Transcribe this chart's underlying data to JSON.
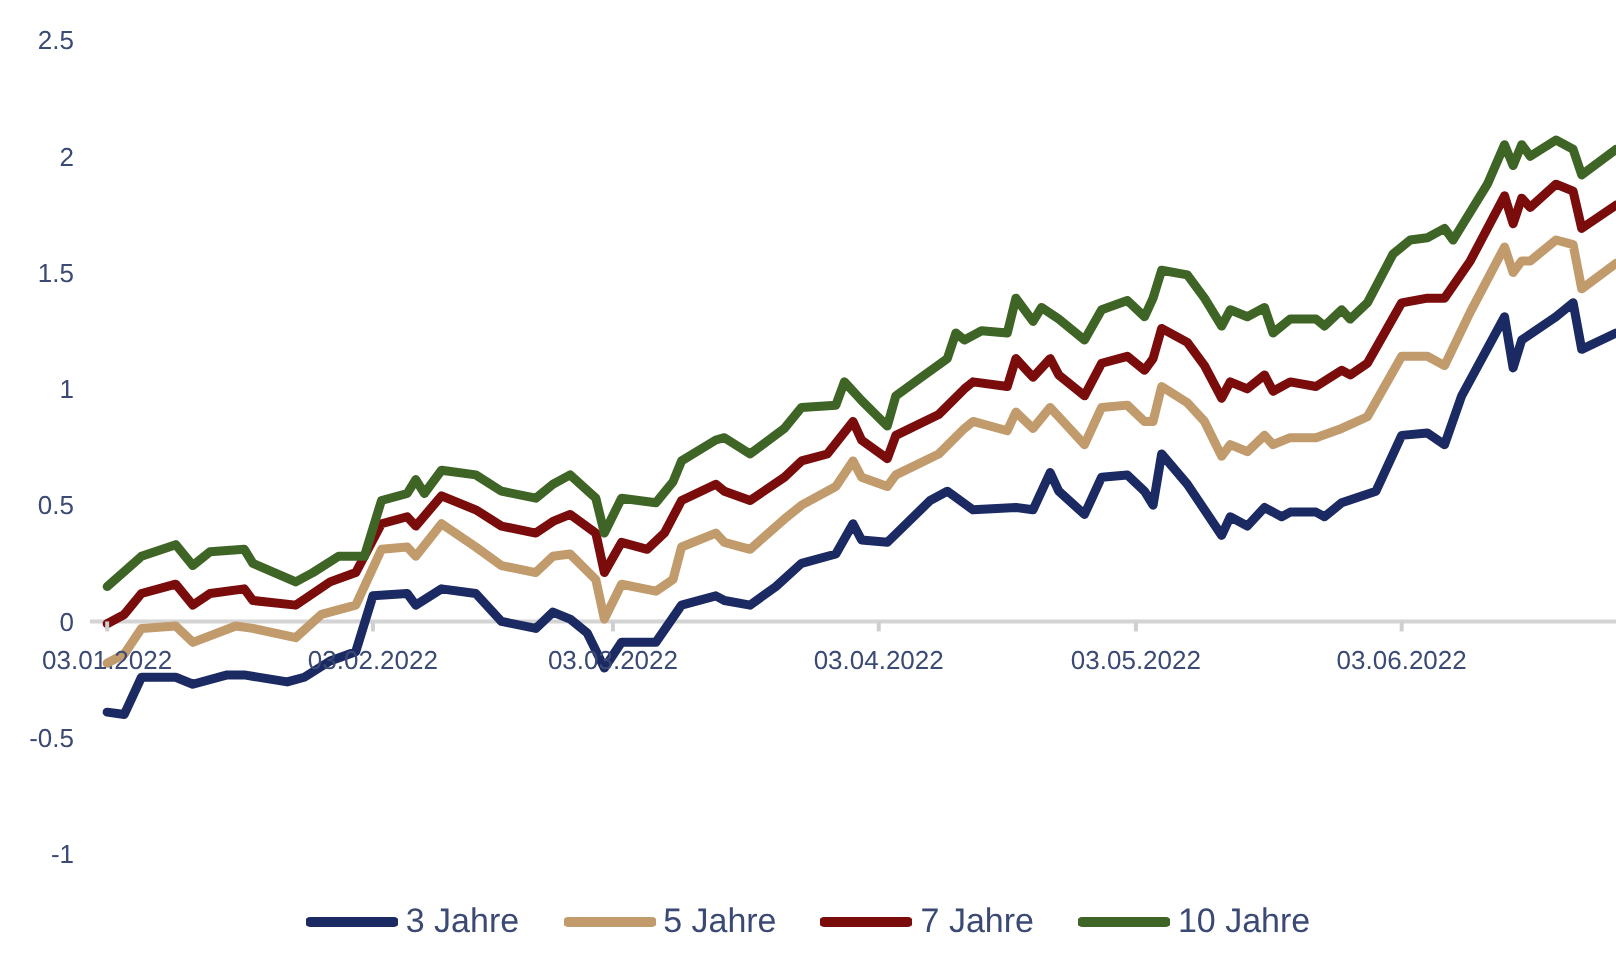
{
  "chart_data": {
    "type": "line",
    "legend": "bottom",
    "line_style": "solid",
    "xlim": [
      "2022-01-01",
      "2022-06-28"
    ],
    "ylim": [
      -1,
      2.5
    ],
    "xticks": [
      {
        "value": "2022-01-03",
        "label": "03.01.2022"
      },
      {
        "value": "2022-02-03",
        "label": "03.02.2022"
      },
      {
        "value": "2022-03-03",
        "label": "03.03.2022"
      },
      {
        "value": "2022-04-03",
        "label": "03.04.2022"
      },
      {
        "value": "2022-05-03",
        "label": "03.05.2022"
      },
      {
        "value": "2022-06-03",
        "label": "03.06.2022"
      }
    ],
    "yticks": [
      -1,
      -0.5,
      0,
      0.5,
      1,
      1.5,
      2,
      2.5
    ],
    "series": [
      {
        "name": "3 Jahre",
        "color": "#1b2a63",
        "x": [
          "2022-01-03",
          "2022-01-05",
          "2022-01-07",
          "2022-01-11",
          "2022-01-13",
          "2022-01-17",
          "2022-01-19",
          "2022-01-24",
          "2022-01-26",
          "2022-01-29",
          "2022-02-01",
          "2022-02-03",
          "2022-02-07",
          "2022-02-08",
          "2022-02-11",
          "2022-02-15",
          "2022-02-18",
          "2022-02-22",
          "2022-02-24",
          "2022-02-26",
          "2022-02-28",
          "2022-03-02",
          "2022-03-04",
          "2022-03-08",
          "2022-03-11",
          "2022-03-15",
          "2022-03-16",
          "2022-03-19",
          "2022-03-22",
          "2022-03-25",
          "2022-03-29",
          "2022-03-31",
          "2022-04-01",
          "2022-04-04",
          "2022-04-09",
          "2022-04-11",
          "2022-04-14",
          "2022-04-19",
          "2022-04-21",
          "2022-04-23",
          "2022-04-24",
          "2022-04-27",
          "2022-04-29",
          "2022-05-02",
          "2022-05-04",
          "2022-05-05",
          "2022-05-06",
          "2022-05-09",
          "2022-05-13",
          "2022-05-14",
          "2022-05-16",
          "2022-05-18",
          "2022-05-20",
          "2022-05-21",
          "2022-05-24",
          "2022-05-25",
          "2022-05-27",
          "2022-05-31",
          "2022-06-03",
          "2022-06-06",
          "2022-06-08",
          "2022-06-10",
          "2022-06-15",
          "2022-06-16",
          "2022-06-17",
          "2022-06-21",
          "2022-06-23",
          "2022-06-24",
          "2022-06-28"
        ],
        "values": [
          -0.39,
          -0.4,
          -0.24,
          -0.24,
          -0.27,
          -0.23,
          -0.23,
          -0.26,
          -0.24,
          -0.17,
          -0.13,
          0.11,
          0.12,
          0.07,
          0.14,
          0.12,
          0.0,
          -0.03,
          0.04,
          0.01,
          -0.05,
          -0.2,
          -0.09,
          -0.09,
          0.07,
          0.11,
          0.09,
          0.07,
          0.15,
          0.25,
          0.29,
          0.42,
          0.35,
          0.34,
          0.52,
          0.56,
          0.48,
          0.49,
          0.48,
          0.64,
          0.56,
          0.46,
          0.62,
          0.63,
          0.56,
          0.5,
          0.72,
          0.59,
          0.37,
          0.45,
          0.41,
          0.49,
          0.45,
          0.47,
          0.47,
          0.45,
          0.51,
          0.56,
          0.8,
          0.81,
          0.76,
          0.97,
          1.31,
          1.09,
          1.21,
          1.31,
          1.37,
          1.17,
          1.24
        ]
      },
      {
        "name": "5 Jahre",
        "color": "#c19b6c",
        "x": [
          "2022-01-03",
          "2022-01-05",
          "2022-01-07",
          "2022-01-11",
          "2022-01-13",
          "2022-01-18",
          "2022-01-20",
          "2022-01-25",
          "2022-01-28",
          "2022-02-01",
          "2022-02-04",
          "2022-02-07",
          "2022-02-08",
          "2022-02-11",
          "2022-02-15",
          "2022-02-18",
          "2022-02-22",
          "2022-02-24",
          "2022-02-26",
          "2022-03-01",
          "2022-03-02",
          "2022-03-04",
          "2022-03-08",
          "2022-03-10",
          "2022-03-11",
          "2022-03-15",
          "2022-03-16",
          "2022-03-19",
          "2022-03-23",
          "2022-03-25",
          "2022-03-29",
          "2022-03-31",
          "2022-04-01",
          "2022-04-04",
          "2022-04-05",
          "2022-04-10",
          "2022-04-13",
          "2022-04-14",
          "2022-04-18",
          "2022-04-19",
          "2022-04-21",
          "2022-04-23",
          "2022-04-24",
          "2022-04-27",
          "2022-04-29",
          "2022-05-02",
          "2022-05-04",
          "2022-05-05",
          "2022-05-06",
          "2022-05-09",
          "2022-05-11",
          "2022-05-13",
          "2022-05-14",
          "2022-05-16",
          "2022-05-18",
          "2022-05-19",
          "2022-05-21",
          "2022-05-24",
          "2022-05-27",
          "2022-05-30",
          "2022-06-03",
          "2022-06-06",
          "2022-06-08",
          "2022-06-11",
          "2022-06-15",
          "2022-06-16",
          "2022-06-17",
          "2022-06-18",
          "2022-06-21",
          "2022-06-23",
          "2022-06-24",
          "2022-06-28"
        ],
        "values": [
          -0.18,
          -0.14,
          -0.03,
          -0.02,
          -0.09,
          -0.02,
          -0.03,
          -0.07,
          0.03,
          0.07,
          0.31,
          0.32,
          0.28,
          0.42,
          0.32,
          0.24,
          0.21,
          0.28,
          0.29,
          0.18,
          0.01,
          0.16,
          0.13,
          0.18,
          0.32,
          0.38,
          0.34,
          0.31,
          0.44,
          0.5,
          0.58,
          0.69,
          0.62,
          0.58,
          0.63,
          0.72,
          0.83,
          0.86,
          0.82,
          0.9,
          0.83,
          0.92,
          0.88,
          0.76,
          0.92,
          0.93,
          0.86,
          0.86,
          1.01,
          0.94,
          0.86,
          0.71,
          0.76,
          0.73,
          0.8,
          0.76,
          0.79,
          0.79,
          0.83,
          0.88,
          1.14,
          1.14,
          1.1,
          1.33,
          1.61,
          1.5,
          1.55,
          1.55,
          1.64,
          1.62,
          1.43,
          1.54
        ]
      },
      {
        "name": "7 Jahre",
        "color": "#7a0c0c",
        "x": [
          "2022-01-03",
          "2022-01-05",
          "2022-01-07",
          "2022-01-11",
          "2022-01-13",
          "2022-01-15",
          "2022-01-19",
          "2022-01-20",
          "2022-01-25",
          "2022-01-29",
          "2022-02-01",
          "2022-02-04",
          "2022-02-07",
          "2022-02-08",
          "2022-02-11",
          "2022-02-15",
          "2022-02-18",
          "2022-02-22",
          "2022-02-24",
          "2022-02-26",
          "2022-03-01",
          "2022-03-02",
          "2022-03-04",
          "2022-03-07",
          "2022-03-09",
          "2022-03-11",
          "2022-03-15",
          "2022-03-16",
          "2022-03-19",
          "2022-03-23",
          "2022-03-25",
          "2022-03-28",
          "2022-03-31",
          "2022-04-01",
          "2022-04-04",
          "2022-04-05",
          "2022-04-10",
          "2022-04-13",
          "2022-04-14",
          "2022-04-18",
          "2022-04-19",
          "2022-04-21",
          "2022-04-23",
          "2022-04-24",
          "2022-04-27",
          "2022-04-29",
          "2022-05-02",
          "2022-05-04",
          "2022-05-05",
          "2022-05-06",
          "2022-05-09",
          "2022-05-11",
          "2022-05-13",
          "2022-05-14",
          "2022-05-16",
          "2022-05-18",
          "2022-05-19",
          "2022-05-21",
          "2022-05-24",
          "2022-05-27",
          "2022-05-28",
          "2022-05-30",
          "2022-06-03",
          "2022-06-06",
          "2022-06-08",
          "2022-06-11",
          "2022-06-15",
          "2022-06-16",
          "2022-06-17",
          "2022-06-18",
          "2022-06-21",
          "2022-06-23",
          "2022-06-24",
          "2022-06-28"
        ],
        "values": [
          -0.01,
          0.03,
          0.12,
          0.16,
          0.07,
          0.12,
          0.14,
          0.09,
          0.07,
          0.17,
          0.21,
          0.42,
          0.45,
          0.41,
          0.54,
          0.48,
          0.41,
          0.38,
          0.43,
          0.46,
          0.38,
          0.21,
          0.34,
          0.31,
          0.38,
          0.52,
          0.59,
          0.56,
          0.52,
          0.62,
          0.69,
          0.72,
          0.86,
          0.78,
          0.7,
          0.8,
          0.89,
          1.0,
          1.03,
          1.01,
          1.13,
          1.05,
          1.13,
          1.06,
          0.97,
          1.11,
          1.14,
          1.08,
          1.13,
          1.26,
          1.2,
          1.1,
          0.96,
          1.03,
          1.0,
          1.06,
          0.99,
          1.03,
          1.01,
          1.08,
          1.06,
          1.11,
          1.37,
          1.39,
          1.39,
          1.55,
          1.83,
          1.71,
          1.82,
          1.78,
          1.88,
          1.85,
          1.69,
          1.79
        ]
      },
      {
        "name": "10 Jahre",
        "color": "#3f6526",
        "x": [
          "2022-01-03",
          "2022-01-07",
          "2022-01-11",
          "2022-01-13",
          "2022-01-15",
          "2022-01-19",
          "2022-01-20",
          "2022-01-25",
          "2022-01-27",
          "2022-01-30",
          "2022-02-02",
          "2022-02-04",
          "2022-02-07",
          "2022-02-08",
          "2022-02-09",
          "2022-02-11",
          "2022-02-15",
          "2022-02-18",
          "2022-02-22",
          "2022-02-24",
          "2022-02-26",
          "2022-03-01",
          "2022-03-02",
          "2022-03-04",
          "2022-03-08",
          "2022-03-10",
          "2022-03-11",
          "2022-03-15",
          "2022-03-16",
          "2022-03-19",
          "2022-03-23",
          "2022-03-25",
          "2022-03-29",
          "2022-03-30",
          "2022-04-01",
          "2022-04-04",
          "2022-04-05",
          "2022-04-08",
          "2022-04-11",
          "2022-04-12",
          "2022-04-13",
          "2022-04-15",
          "2022-04-18",
          "2022-04-19",
          "2022-04-21",
          "2022-04-22",
          "2022-04-24",
          "2022-04-27",
          "2022-04-29",
          "2022-05-02",
          "2022-05-04",
          "2022-05-05",
          "2022-05-06",
          "2022-05-09",
          "2022-05-11",
          "2022-05-13",
          "2022-05-14",
          "2022-05-16",
          "2022-05-18",
          "2022-05-19",
          "2022-05-21",
          "2022-05-24",
          "2022-05-25",
          "2022-05-27",
          "2022-05-28",
          "2022-05-30",
          "2022-06-02",
          "2022-06-04",
          "2022-06-06",
          "2022-06-08",
          "2022-06-09",
          "2022-06-13",
          "2022-06-15",
          "2022-06-16",
          "2022-06-17",
          "2022-06-18",
          "2022-06-21",
          "2022-06-23",
          "2022-06-24",
          "2022-06-28"
        ],
        "values": [
          0.15,
          0.28,
          0.33,
          0.24,
          0.3,
          0.31,
          0.25,
          0.17,
          0.21,
          0.28,
          0.28,
          0.52,
          0.55,
          0.61,
          0.55,
          0.65,
          0.63,
          0.56,
          0.53,
          0.59,
          0.63,
          0.53,
          0.38,
          0.53,
          0.51,
          0.6,
          0.69,
          0.78,
          0.79,
          0.72,
          0.83,
          0.92,
          0.93,
          1.03,
          0.95,
          0.84,
          0.97,
          1.05,
          1.13,
          1.24,
          1.21,
          1.25,
          1.24,
          1.39,
          1.29,
          1.35,
          1.3,
          1.21,
          1.34,
          1.38,
          1.31,
          1.39,
          1.51,
          1.49,
          1.39,
          1.27,
          1.34,
          1.31,
          1.35,
          1.24,
          1.3,
          1.3,
          1.27,
          1.34,
          1.3,
          1.37,
          1.58,
          1.64,
          1.65,
          1.69,
          1.64,
          1.88,
          2.05,
          1.96,
          2.05,
          2.0,
          2.07,
          2.03,
          1.92,
          2.03
        ]
      }
    ]
  }
}
